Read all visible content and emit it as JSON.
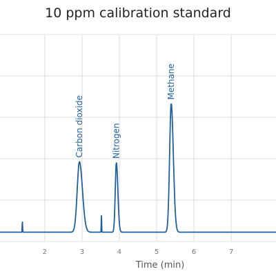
{
  "chart_data": {
    "type": "line",
    "title": "10 ppm calibration standard",
    "xlabel": "Time (min)",
    "ylabel": "",
    "xlim": [
      0.8,
      8.2
    ],
    "ylim": [
      0,
      1.0
    ],
    "x_ticks": [
      2,
      3,
      4,
      5,
      6,
      7
    ],
    "x_tick_labels": [
      "2",
      "3",
      "4",
      "5",
      "6",
      "7"
    ],
    "grid": true,
    "color": "#1f5f9f",
    "baseline": 0.045,
    "peaks": [
      {
        "label": "Carbon dioxide",
        "rt": 2.93,
        "height": 0.34,
        "width": 0.07
      },
      {
        "label": "Nitrogen",
        "rt": 3.92,
        "height": 0.335,
        "width": 0.035
      },
      {
        "label": "Methane",
        "rt": 5.39,
        "height": 0.62,
        "width": 0.05
      }
    ],
    "spikes": [
      {
        "x": 1.4,
        "height": 0.05
      },
      {
        "x": 3.52,
        "height": 0.08
      }
    ]
  }
}
